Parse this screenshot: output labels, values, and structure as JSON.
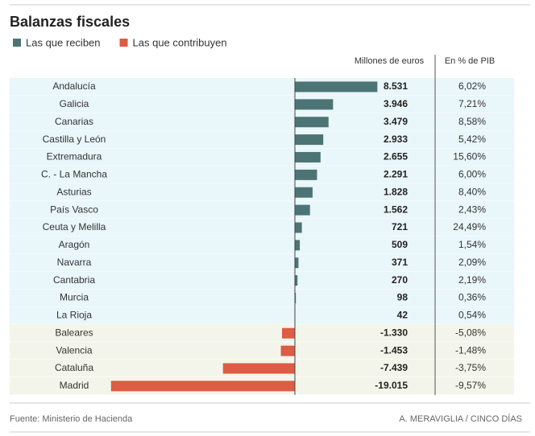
{
  "chart_data": {
    "type": "bar",
    "title": "Balanzas fiscales",
    "legend": [
      {
        "name": "Las que reciben",
        "color": "#4d7474"
      },
      {
        "name": "Las que contribuyen",
        "color": "#dd5c44"
      }
    ],
    "value_header": "Millones de euros",
    "pib_header": "En % de PIB",
    "categories": [
      "Andalucía",
      "Galicia",
      "Canarias",
      "Castilla y León",
      "Extremadura",
      "C. - La Mancha",
      "Asturias",
      "País Vasco",
      "Ceuta y Melilla",
      "Aragón",
      "Navarra",
      "Cantabria",
      "Murcia",
      "La Rioja",
      "Baleares",
      "Valencia",
      "Cataluña",
      "Madrid"
    ],
    "values": [
      8531,
      3946,
      3479,
      2933,
      2655,
      2291,
      1828,
      1562,
      721,
      509,
      371,
      270,
      98,
      42,
      -1330,
      -1453,
      -7439,
      -19015
    ],
    "value_labels": [
      "8.531",
      "3.946",
      "3.479",
      "2.933",
      "2.655",
      "2.291",
      "1.828",
      "1.562",
      "721",
      "509",
      "371",
      "270",
      "98",
      "42",
      "-1.330",
      "-1.453",
      "-7.439",
      "-19.015"
    ],
    "pib_values": [
      6.02,
      7.21,
      8.58,
      5.42,
      15.6,
      6.0,
      8.4,
      2.43,
      24.49,
      1.54,
      2.09,
      2.19,
      0.36,
      0.54,
      -5.08,
      -1.48,
      -3.75,
      -9.57
    ],
    "pib_labels": [
      "6,02%",
      "7,21%",
      "8,58%",
      "5,42%",
      "15,60%",
      "6,00%",
      "8,40%",
      "2,43%",
      "24,49%",
      "1,54%",
      "2,09%",
      "2,19%",
      "0,36%",
      "0,54%",
      "-5,08%",
      "-1,48%",
      "-3,75%",
      "-9,57%"
    ],
    "xlim": [
      -20000,
      10000
    ],
    "source": "Fuente: Ministerio de Hacienda",
    "credit": "A. MERAVIGLIA / CINCO DÍAS"
  }
}
